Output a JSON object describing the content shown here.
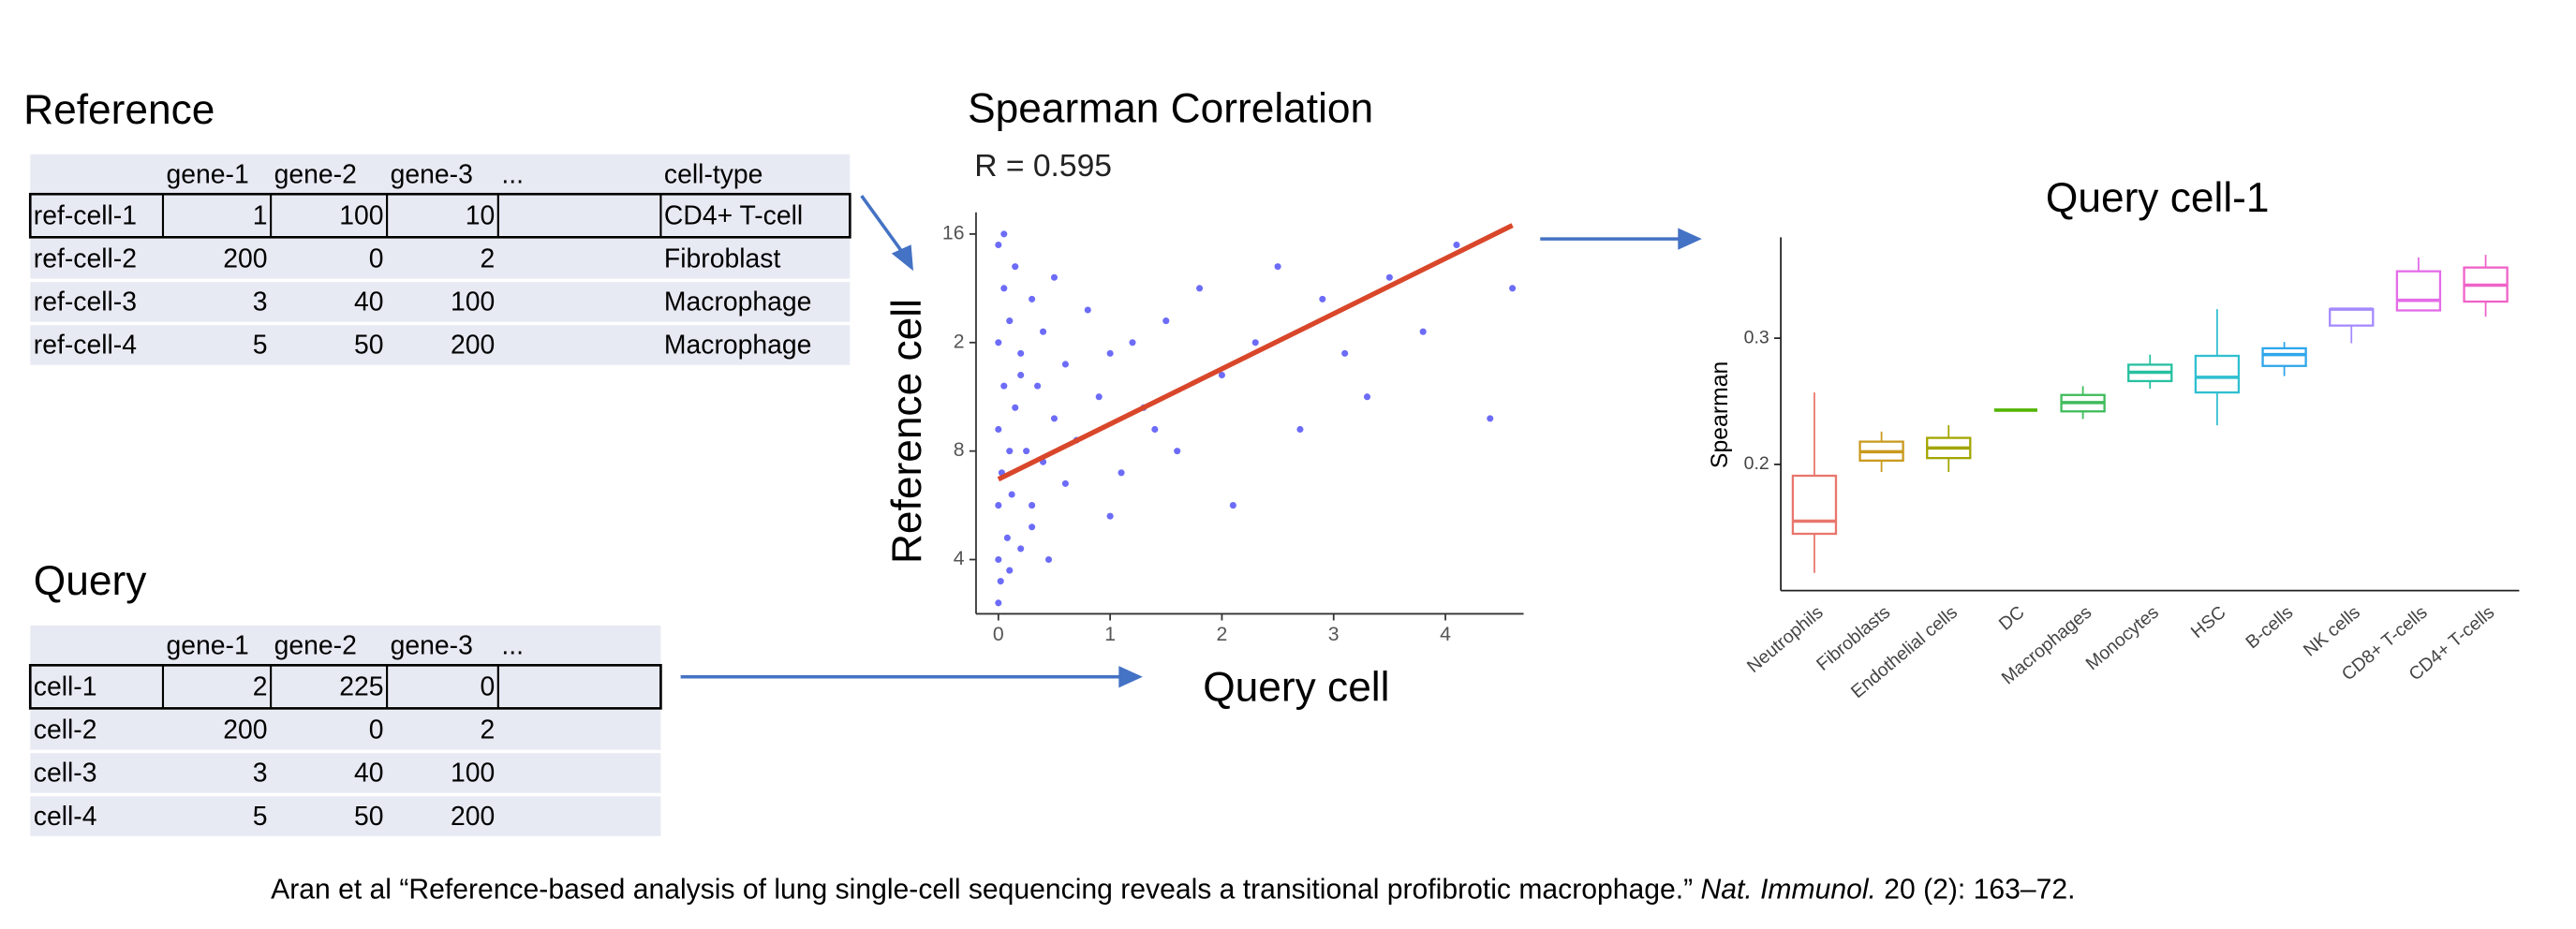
{
  "slide": {
    "reference": {
      "title": "Reference",
      "gene_columns": [
        "gene-1",
        "gene-2",
        "gene-3"
      ],
      "ellipsis": "...",
      "type_column": "cell-type",
      "rows": [
        {
          "name": "ref-cell-1",
          "genes": [
            1,
            100,
            10
          ],
          "cell_type": "CD4+ T-cell"
        },
        {
          "name": "ref-cell-2",
          "genes": [
            200,
            0,
            2
          ],
          "cell_type": "Fibroblast"
        },
        {
          "name": "ref-cell-3",
          "genes": [
            3,
            40,
            100
          ],
          "cell_type": "Macrophage"
        },
        {
          "name": "ref-cell-4",
          "genes": [
            5,
            50,
            200
          ],
          "cell_type": "Macrophage"
        }
      ]
    },
    "query": {
      "title": "Query",
      "gene_columns": [
        "gene-1",
        "gene-2",
        "gene-3"
      ],
      "ellipsis": "...",
      "rows": [
        {
          "name": "cell-1",
          "genes": [
            2,
            225,
            0
          ]
        },
        {
          "name": "cell-2",
          "genes": [
            200,
            0,
            2
          ]
        },
        {
          "name": "cell-3",
          "genes": [
            3,
            40,
            100
          ]
        },
        {
          "name": "cell-4",
          "genes": [
            5,
            50,
            200
          ]
        }
      ]
    },
    "citation": {
      "before": "Aran et al “Reference-based analysis of lung single-cell sequencing reveals a transitional profibrotic macrophage.” ",
      "journal": "Nat. Immunol.",
      "after": " 20 (2): 163–72."
    }
  },
  "chart_data": [
    {
      "type": "scatter",
      "title": "Spearman Correlation",
      "subtitle": "R = 0.595",
      "xlabel": "Query cell",
      "ylabel": "Reference cell",
      "color": "#3b3bf5",
      "x": [
        0,
        0,
        0,
        0,
        0,
        0,
        0.02,
        0.03,
        0.05,
        0.05,
        0.08,
        0.1,
        0.1,
        0.12,
        0.15,
        0.15,
        0.2,
        0.2,
        0.25,
        0.3,
        0.3,
        0.35,
        0.4,
        0.4,
        0.5,
        0.5,
        0.6,
        0.7,
        0.8,
        0.9,
        1.0,
        1.1,
        1.2,
        1.3,
        1.5,
        1.6,
        1.8,
        2.0,
        2.1,
        2.3,
        2.5,
        2.7,
        2.9,
        3.1,
        3.3,
        3.5,
        3.8,
        4.1,
        4.4,
        4.6,
        0.1,
        0.3,
        0.6,
        1.0,
        1.4,
        0.2,
        0.05,
        0.45
      ],
      "y": [
        0.6,
        1.0,
        1.5,
        2.2,
        3.0,
        3.9,
        0.8,
        1.8,
        2.6,
        3.5,
        1.2,
        2.0,
        3.2,
        1.6,
        2.4,
        3.7,
        1.1,
        2.9,
        2.0,
        1.5,
        3.4,
        2.6,
        1.9,
        3.1,
        2.3,
        3.6,
        2.8,
        2.1,
        3.3,
        2.5,
        2.9,
        1.8,
        3.0,
        2.4,
        3.2,
        2.0,
        3.5,
        2.7,
        1.5,
        3.0,
        3.7,
        2.2,
        3.4,
        2.9,
        2.5,
        3.6,
        3.1,
        3.9,
        2.3,
        3.5,
        0.9,
        1.3,
        1.7,
        1.4,
        2.2,
        2.7,
        4.0,
        1.0
      ],
      "trend": {
        "x": [
          0,
          4.6
        ],
        "y": [
          1.74,
          4.08
        ],
        "color": "#d9472b"
      },
      "xlim": [
        -0.2,
        4.7
      ],
      "xticks": [
        0,
        1,
        2,
        3,
        4
      ],
      "ylim": [
        0.5,
        4.2
      ],
      "yticks": [
        {
          "value": 1,
          "label": "4"
        },
        {
          "value": 2,
          "label": "8"
        },
        {
          "value": 3,
          "label": "2"
        },
        {
          "value": 4,
          "label": "16"
        }
      ]
    },
    {
      "type": "box",
      "title": "Query cell-1",
      "ylabel": "Spearman",
      "categories": [
        "Neutrophils",
        "Fibroblasts",
        "Endothelial cells",
        "DC",
        "Macrophages",
        "Monocytes",
        "HSC",
        "B-cells",
        "NK cells",
        "CD8+ T-cells",
        "CD4+ T-cells"
      ],
      "colors": [
        "#e8766d",
        "#c99a1e",
        "#a3a500",
        "#53b400",
        "#3fbc5a",
        "#27c0a0",
        "#2fbfd0",
        "#2ea6ea",
        "#a58aff",
        "#e46be8",
        "#f062c8"
      ],
      "boxes": [
        {
          "min": 0.114,
          "q1": 0.145,
          "median": 0.155,
          "q3": 0.191,
          "max": 0.257
        },
        {
          "min": 0.194,
          "q1": 0.203,
          "median": 0.21,
          "q3": 0.218,
          "max": 0.226
        },
        {
          "min": 0.194,
          "q1": 0.205,
          "median": 0.213,
          "q3": 0.221,
          "max": 0.231
        },
        {
          "min": 0.243,
          "q1": 0.243,
          "median": 0.243,
          "q3": 0.243,
          "max": 0.243
        },
        {
          "min": 0.236,
          "q1": 0.242,
          "median": 0.249,
          "q3": 0.255,
          "max": 0.262
        },
        {
          "min": 0.26,
          "q1": 0.266,
          "median": 0.273,
          "q3": 0.279,
          "max": 0.287
        },
        {
          "min": 0.231,
          "q1": 0.257,
          "median": 0.269,
          "q3": 0.286,
          "max": 0.323
        },
        {
          "min": 0.27,
          "q1": 0.278,
          "median": 0.287,
          "q3": 0.292,
          "max": 0.297
        },
        {
          "min": 0.296,
          "q1": 0.31,
          "median": 0.323,
          "q3": 0.323,
          "max": 0.323
        },
        {
          "min": 0.322,
          "q1": 0.322,
          "median": 0.33,
          "q3": 0.353,
          "max": 0.364
        },
        {
          "min": 0.317,
          "q1": 0.329,
          "median": 0.342,
          "q3": 0.356,
          "max": 0.366
        }
      ],
      "ylim": [
        0.1,
        0.38
      ],
      "yticks": [
        0.2,
        0.3
      ]
    }
  ]
}
